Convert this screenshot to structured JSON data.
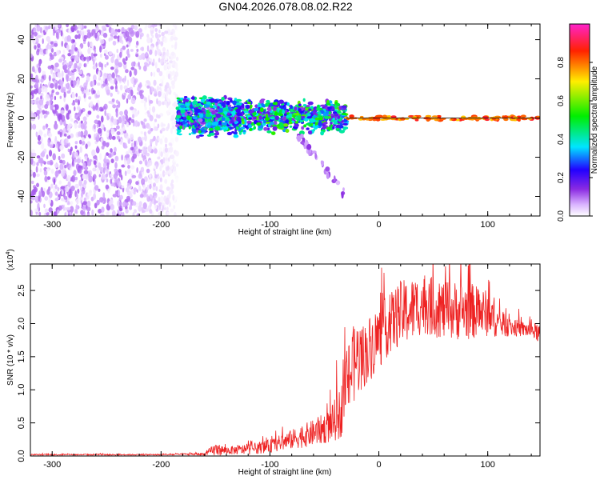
{
  "title": "GN04.2026.078.08.02.R22",
  "colors": {
    "snr_line": "#ee2222",
    "frame": "#000000",
    "background": "#ffffff"
  },
  "chart_data": [
    {
      "id": "spectrogram",
      "type": "heatmap",
      "xlabel": "Height of straight line (km)",
      "ylabel": "Frequency (Hz)",
      "xlim": [
        -320,
        148
      ],
      "ylim": [
        -50,
        48
      ],
      "x_ticks": [
        -300,
        -200,
        -100,
        0,
        100
      ],
      "x_tick_labels": [
        "-300",
        "-200",
        "-100",
        "0",
        "100"
      ],
      "y_ticks": [
        -40,
        -20,
        0,
        20,
        40
      ],
      "y_tick_labels": [
        "-40",
        "-20",
        "0",
        "20",
        "40"
      ],
      "grid": false,
      "colorbar": {
        "label": "Normalized spectral amplitude",
        "range": [
          0,
          1
        ],
        "ticks": [
          0,
          0.2,
          0.4,
          0.6,
          0.8
        ],
        "tick_labels": [
          "0.0",
          "0.2",
          "0.4",
          "0.6",
          "0.8"
        ],
        "colormap": "rainbow (white to purple, blue, cyan, green, yellow, red, magenta)"
      },
      "regions": [
        {
          "x_range": [
            -320,
            -185
          ],
          "freq_range": [
            -50,
            48
          ],
          "amplitude": 0.05,
          "pattern": "scattered noise"
        },
        {
          "x_range": [
            -185,
            -130
          ],
          "freq_range": [
            -10,
            12
          ],
          "amplitude": 0.25,
          "pattern": "band"
        },
        {
          "x_range": [
            -130,
            -30
          ],
          "freq_range": [
            -8,
            10
          ],
          "amplitude": 0.3,
          "pattern": "band"
        },
        {
          "x_range": [
            -75,
            -30
          ],
          "freq_range": [
            -40,
            -8
          ],
          "amplitude": 0.1,
          "pattern": "descending streak"
        },
        {
          "x_range": [
            -30,
            148
          ],
          "freq_range": [
            -1,
            1
          ],
          "amplitude": 0.85,
          "pattern": "narrow line"
        }
      ]
    },
    {
      "id": "snr",
      "type": "line",
      "xlabel": "Height of straight line (km)",
      "ylabel": "SNR (10 * v/v)",
      "y_scale_note": "(x10",
      "y_scale_exponent": "4",
      "xlim": [
        -320,
        148
      ],
      "ylim": [
        0,
        2.9
      ],
      "x_ticks": [
        -300,
        -200,
        -100,
        0,
        100
      ],
      "x_tick_labels": [
        "-300",
        "-200",
        "-100",
        "0",
        "100"
      ],
      "y_ticks": [
        0,
        0.5,
        1,
        1.5,
        2,
        2.5
      ],
      "y_tick_labels": [
        "0.0",
        "0.5",
        "1.0",
        "1.5",
        "2.0",
        "2.5"
      ],
      "grid": false,
      "envelope_x": [
        -320,
        -200,
        -160,
        -150,
        -140,
        -120,
        -100,
        -80,
        -60,
        -45,
        -35,
        -30,
        -25,
        -20,
        -15,
        -10,
        0,
        10,
        20,
        30,
        40,
        60,
        80,
        100,
        110,
        120,
        130,
        140,
        148
      ],
      "envelope_y": [
        0.02,
        0.02,
        0.03,
        0.1,
        0.08,
        0.1,
        0.15,
        0.25,
        0.35,
        0.45,
        0.65,
        1.1,
        1.3,
        1.5,
        1.5,
        1.6,
        1.8,
        2.0,
        2.15,
        2.2,
        2.3,
        2.2,
        2.2,
        2.15,
        2.0,
        1.95,
        1.92,
        1.9,
        1.85
      ],
      "spread_y": [
        0.01,
        0.01,
        0.02,
        0.1,
        0.06,
        0.08,
        0.1,
        0.15,
        0.2,
        0.25,
        0.4,
        0.5,
        0.6,
        0.6,
        0.5,
        0.5,
        0.5,
        0.45,
        0.5,
        0.5,
        0.45,
        0.45,
        0.45,
        0.35,
        0.2,
        0.15,
        0.12,
        0.12,
        0.15
      ]
    }
  ]
}
